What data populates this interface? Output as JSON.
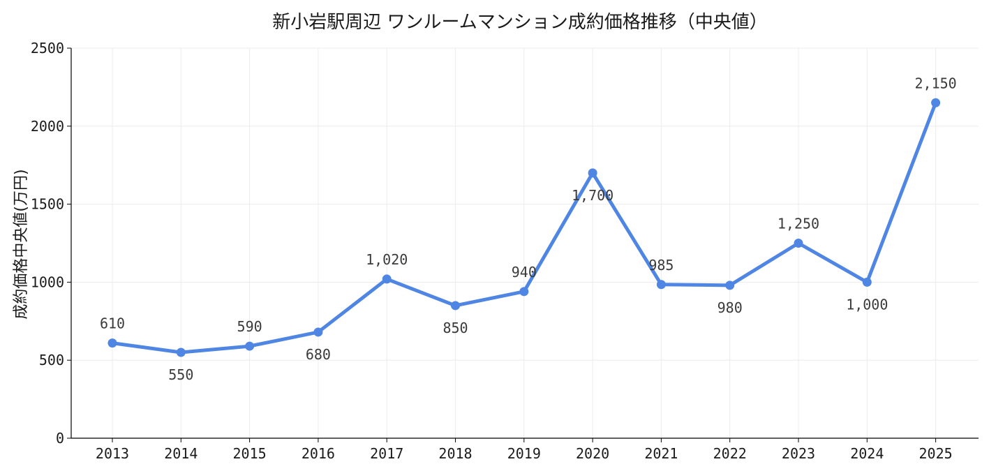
{
  "chart_data": {
    "type": "line",
    "title": "新小岩駅周辺 ワンルームマンション成約価格推移（中央値）",
    "xlabel": "",
    "ylabel": "成約価格中央値(万円)",
    "categories": [
      "2013",
      "2014",
      "2015",
      "2016",
      "2017",
      "2018",
      "2019",
      "2020",
      "2021",
      "2022",
      "2023",
      "2024",
      "2025"
    ],
    "values": [
      610,
      550,
      590,
      680,
      1020,
      850,
      940,
      1700,
      985,
      980,
      1250,
      1000,
      2150
    ],
    "data_labels": [
      "610",
      "550",
      "590",
      "680",
      "1,020",
      "850",
      "940",
      "1,700",
      "985",
      "980",
      "1,250",
      "1,000",
      "2,150"
    ],
    "label_positions": [
      "above",
      "below",
      "above",
      "below",
      "above",
      "below",
      "above",
      "below",
      "above",
      "below",
      "above",
      "below",
      "above"
    ],
    "ylim": [
      0,
      2500
    ],
    "yticks": [
      "0",
      "500",
      "1000",
      "1500",
      "2000",
      "2500"
    ],
    "ytick_values": [
      0,
      500,
      1000,
      1500,
      2000,
      2500
    ],
    "grid": true,
    "legend": "none",
    "colors": {
      "line": "#4f86e3",
      "marker": "#4f86e3"
    }
  }
}
